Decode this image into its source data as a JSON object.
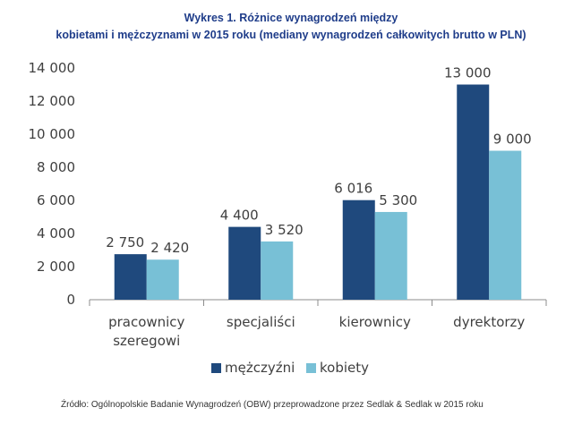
{
  "chart_data": {
    "type": "bar",
    "title_line1": "Wykres 1. Różnice wynagrodzeń między",
    "title_line2": "kobietami i mężczyznami w 2015 roku (mediany wynagrodzeń całkowitych brutto w PLN)",
    "categories": [
      [
        "pracownicy",
        "szeregowi"
      ],
      [
        "specjaliści"
      ],
      [
        "kierownicy"
      ],
      [
        "dyrektorzy"
      ]
    ],
    "series": [
      {
        "name": "mężczyźni",
        "values": [
          2750,
          4400,
          6016,
          13000
        ],
        "labels": [
          "2 750",
          "4 400",
          "6 016",
          "13 000"
        ],
        "color": "#1f497d"
      },
      {
        "name": "kobiety",
        "values": [
          2420,
          3520,
          5300,
          9000
        ],
        "labels": [
          "2 420",
          "3 520",
          "5 300",
          "9 000"
        ],
        "color": "#78c0d6"
      }
    ],
    "ylim": [
      0,
      14000
    ],
    "yticks": [
      0,
      2000,
      4000,
      6000,
      8000,
      10000,
      12000,
      14000
    ],
    "ytick_labels": [
      "0",
      "2 000",
      "4 000",
      "6 000",
      "8 000",
      "10 000",
      "12 000",
      "14 000"
    ],
    "grid": false,
    "legend_position": "bottom"
  },
  "source": "Źródło: Ogólnopolskie Badanie Wynagrodzeń (OBW) przeprowadzone przez Sedlak & Sedlak w 2015 roku"
}
